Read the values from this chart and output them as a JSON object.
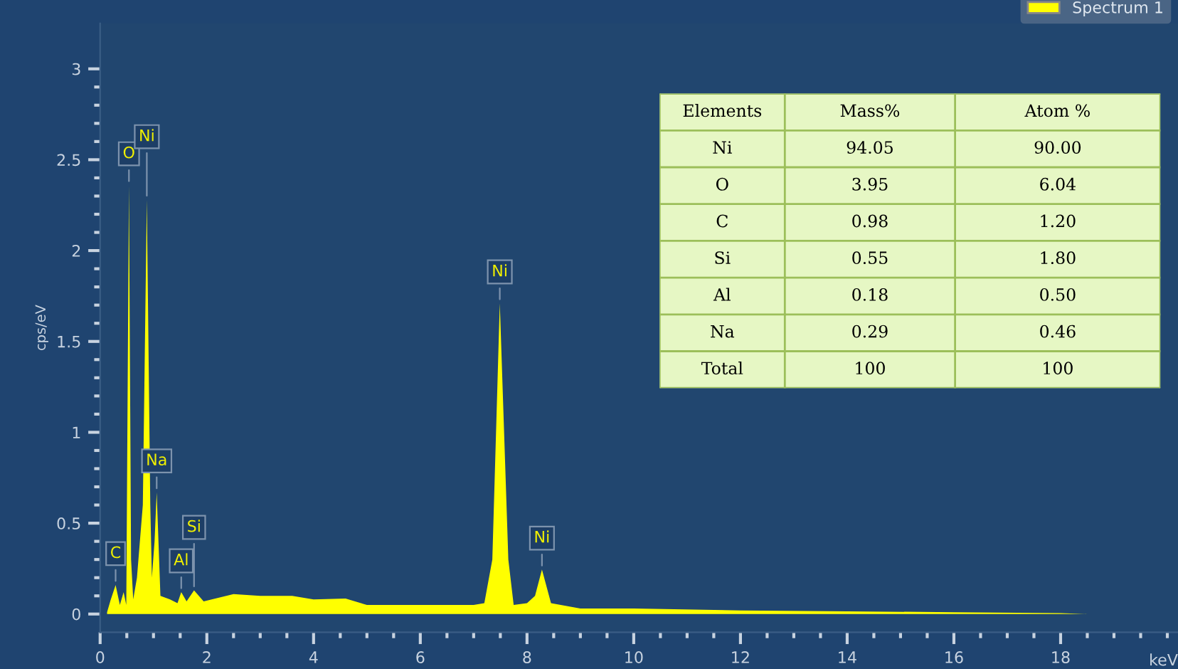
{
  "chart_data": [
    {
      "type": "area",
      "xlabel": "keV",
      "ylabel": "cps/eV",
      "legend": "top right",
      "grid": false,
      "xlim": [
        0,
        20.2
      ],
      "ylim": [
        -0.1,
        3.25
      ],
      "xticks": [
        0,
        {
          "value": 0.5,
          "label": null
        },
        {
          "value": 1,
          "label": null
        },
        {
          "value": 1.5,
          "label": null
        },
        2,
        {
          "value": 2.5,
          "label": null
        },
        {
          "value": 3,
          "label": null
        },
        {
          "value": 3.5,
          "label": null
        },
        4,
        {
          "value": 4.5,
          "label": null
        },
        {
          "value": 5,
          "label": null
        },
        {
          "value": 5.5,
          "label": null
        },
        6,
        {
          "value": 6.5,
          "label": null
        },
        {
          "value": 7,
          "label": null
        },
        {
          "value": 7.5,
          "label": null
        },
        8,
        {
          "value": 8.5,
          "label": null
        },
        {
          "value": 9,
          "label": null
        },
        {
          "value": 9.5,
          "label": null
        },
        10,
        {
          "value": 10.5,
          "label": null
        },
        {
          "value": 11,
          "label": null
        },
        {
          "value": 11.5,
          "label": null
        },
        12,
        {
          "value": 12.5,
          "label": null
        },
        {
          "value": 13,
          "label": null
        },
        {
          "value": 13.5,
          "label": null
        },
        14,
        {
          "value": 14.5,
          "label": null
        },
        {
          "value": 15,
          "label": null
        },
        {
          "value": 15.5,
          "label": null
        },
        16,
        {
          "value": 16.5,
          "label": null
        },
        {
          "value": 17,
          "label": null
        },
        {
          "value": 17.5,
          "label": null
        },
        18,
        {
          "value": 18.5,
          "label": null
        },
        {
          "value": 19,
          "label": null
        },
        {
          "value": 19.5,
          "label": null
        },
        {
          "value": 20,
          "label": null
        }
      ],
      "yticks": [
        0,
        {
          "value": 0.1,
          "label": null
        },
        {
          "value": 0.2,
          "label": null
        },
        {
          "value": 0.3,
          "label": null
        },
        {
          "value": 0.4,
          "label": null
        },
        0.5,
        {
          "value": 0.6,
          "label": null
        },
        {
          "value": 0.7,
          "label": null
        },
        {
          "value": 0.8,
          "label": null
        },
        {
          "value": 0.9,
          "label": null
        },
        1,
        {
          "value": 1.1,
          "label": null
        },
        {
          "value": 1.2,
          "label": null
        },
        {
          "value": 1.3,
          "label": null
        },
        {
          "value": 1.4,
          "label": null
        },
        1.5,
        {
          "value": 1.6,
          "label": null
        },
        {
          "value": 1.7,
          "label": null
        },
        {
          "value": 1.8,
          "label": null
        },
        {
          "value": 1.9,
          "label": null
        },
        2,
        {
          "value": 2.1,
          "label": null
        },
        {
          "value": 2.2,
          "label": null
        },
        {
          "value": 2.3,
          "label": null
        },
        {
          "value": 2.4,
          "label": null
        },
        2.5,
        {
          "value": 2.6,
          "label": null
        },
        {
          "value": 2.7,
          "label": null
        },
        {
          "value": 2.8,
          "label": null
        },
        {
          "value": 2.9,
          "label": null
        },
        3
      ],
      "series": [
        {
          "name": "Spectrum 1",
          "color": "#ffff00",
          "x": [
            0.13,
            0.2,
            0.29,
            0.37,
            0.44,
            0.49,
            0.54,
            0.58,
            0.62,
            0.69,
            0.8,
            0.875,
            0.94,
            0.97,
            1.02,
            1.06,
            1.13,
            1.31,
            1.45,
            1.52,
            1.62,
            1.76,
            1.94,
            2.5,
            3.0,
            3.6,
            4.0,
            4.6,
            5.0,
            6.0,
            7.0,
            7.2,
            7.35,
            7.49,
            7.65,
            7.75,
            8.0,
            8.15,
            8.28,
            8.45,
            9.0,
            10.0,
            12.0,
            14.0,
            16.0,
            18.0,
            18.5
          ],
          "values": [
            0.01,
            0.08,
            0.16,
            0.05,
            0.12,
            0.05,
            2.36,
            0.3,
            0.08,
            0.2,
            0.6,
            2.28,
            0.6,
            0.2,
            0.4,
            0.67,
            0.1,
            0.08,
            0.06,
            0.12,
            0.07,
            0.13,
            0.07,
            0.11,
            0.1,
            0.1,
            0.08,
            0.085,
            0.05,
            0.05,
            0.05,
            0.06,
            0.3,
            1.71,
            0.3,
            0.05,
            0.06,
            0.1,
            0.245,
            0.06,
            0.03,
            0.03,
            0.02,
            0.015,
            0.01,
            0.005,
            0
          ]
        }
      ],
      "annotations": [
        {
          "text": "C",
          "x": 0.29,
          "y": 0.16
        },
        {
          "text": "O",
          "x": 0.54,
          "y": 2.36
        },
        {
          "text": "Ni",
          "x": 0.875,
          "y": 2.28
        },
        {
          "text": "Na",
          "x": 1.06,
          "y": 0.67
        },
        {
          "text": "Al",
          "x": 1.52,
          "y": 0.12
        },
        {
          "text": "Si",
          "x": 1.76,
          "y": 0.13
        },
        {
          "text": "Ni",
          "x": 7.49,
          "y": 1.71
        },
        {
          "text": "Ni",
          "x": 8.28,
          "y": 0.245
        }
      ]
    },
    {
      "type": "other",
      "xlabel": "Elements",
      "data_labels": true,
      "categories": [
        "Ni",
        "O",
        "C",
        "Si",
        "Al",
        "Na",
        "Total"
      ],
      "series": [
        {
          "name": "Mass%",
          "values": [
            94.05,
            3.95,
            0.98,
            0.55,
            0.18,
            0.29,
            100
          ],
          "value_labels": [
            "94.05",
            "3.95",
            "0.98",
            "0.55",
            "0.18",
            "0.29",
            "100"
          ]
        },
        {
          "name": "Atom %",
          "values": [
            90.0,
            6.04,
            1.2,
            1.8,
            0.5,
            0.46,
            100
          ],
          "value_labels": [
            "90.00",
            "6.04",
            "1.20",
            "1.80",
            "0.50",
            "0.46",
            "100"
          ]
        }
      ]
    }
  ]
}
